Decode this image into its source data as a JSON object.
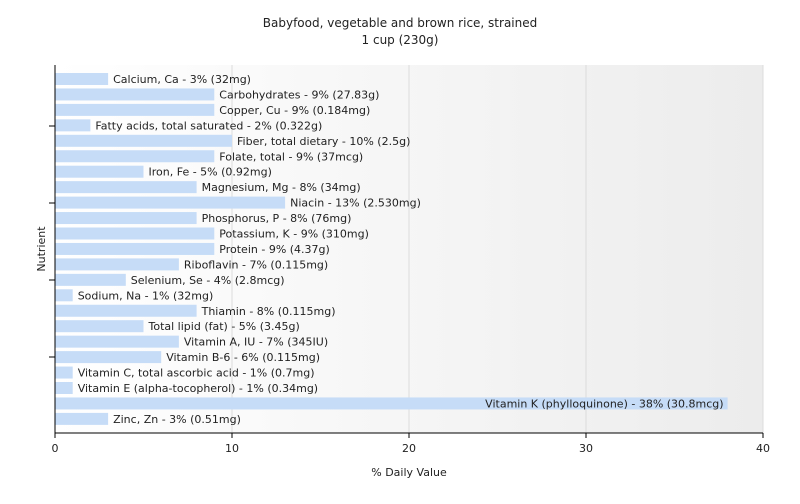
{
  "chart_data": {
    "type": "bar",
    "orientation": "horizontal",
    "title": "Babyfood, vegetable and brown rice, strained",
    "subtitle": "1 cup (230g)",
    "xlabel": "% Daily Value",
    "ylabel": "Nutrient",
    "xlim": [
      0,
      40
    ],
    "xticks": [
      0,
      10,
      20,
      30,
      40
    ],
    "grid": true,
    "bar_color": "#c6dcf7",
    "categories": [
      "Calcium, Ca",
      "Carbohydrates",
      "Copper, Cu",
      "Fatty acids, total saturated",
      "Fiber, total dietary",
      "Folate, total",
      "Iron, Fe",
      "Magnesium, Mg",
      "Niacin",
      "Phosphorus, P",
      "Potassium, K",
      "Protein",
      "Riboflavin",
      "Selenium, Se",
      "Sodium, Na",
      "Thiamin",
      "Total lipid (fat)",
      "Vitamin A, IU",
      "Vitamin B-6",
      "Vitamin C, total ascorbic acid",
      "Vitamin E (alpha-tocopherol)",
      "Vitamin K (phylloquinone)",
      "Zinc, Zn"
    ],
    "values": [
      3,
      9,
      9,
      2,
      10,
      9,
      5,
      8,
      13,
      8,
      9,
      9,
      7,
      4,
      1,
      8,
      5,
      7,
      6,
      1,
      1,
      38,
      3
    ],
    "labels": [
      "Calcium, Ca - 3% (32mg)",
      "Carbohydrates - 9% (27.83g)",
      "Copper, Cu - 9% (0.184mg)",
      "Fatty acids, total saturated - 2% (0.322g)",
      "Fiber, total dietary - 10% (2.5g)",
      "Folate, total - 9% (37mcg)",
      "Iron, Fe - 5% (0.92mg)",
      "Magnesium, Mg - 8% (34mg)",
      "Niacin - 13% (2.530mg)",
      "Phosphorus, P - 8% (76mg)",
      "Potassium, K - 9% (310mg)",
      "Protein - 9% (4.37g)",
      "Riboflavin - 7% (0.115mg)",
      "Selenium, Se - 4% (2.8mcg)",
      "Sodium, Na - 1% (32mg)",
      "Thiamin - 8% (0.115mg)",
      "Total lipid (fat) - 5% (3.45g)",
      "Vitamin A, IU - 7% (345IU)",
      "Vitamin B-6 - 6% (0.115mg)",
      "Vitamin C, total ascorbic acid - 1% (0.7mg)",
      "Vitamin E (alpha-tocopherol) - 1% (0.34mg)",
      "Vitamin K (phylloquinone) - 38% (30.8mcg)",
      "Zinc, Zn - 3% (0.51mg)"
    ]
  }
}
